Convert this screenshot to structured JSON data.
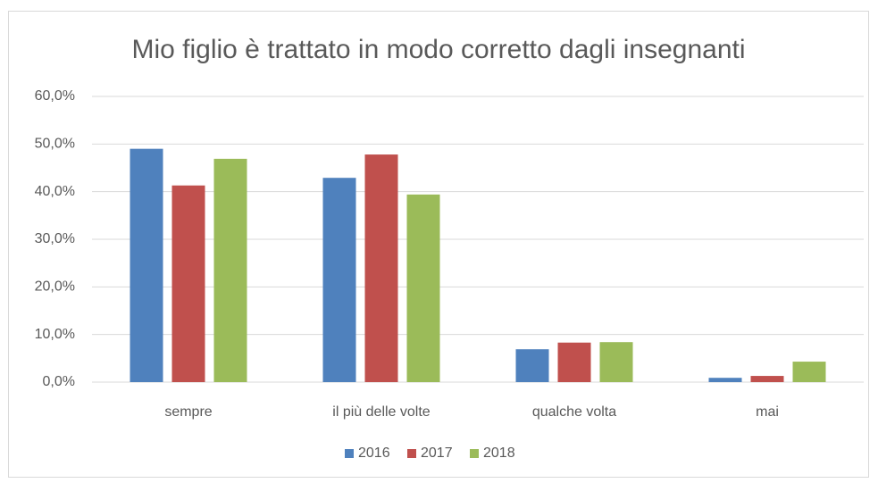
{
  "chart_data": {
    "type": "bar",
    "title": "Mio figlio è trattato in modo corretto dagli insegnanti",
    "categories": [
      "sempre",
      "il più delle volte",
      "qualche volta",
      "mai"
    ],
    "series": [
      {
        "name": "2016",
        "color": "#4f81bd",
        "values": [
          49.0,
          42.9,
          6.9,
          0.9
        ]
      },
      {
        "name": "2017",
        "color": "#c0504d",
        "values": [
          41.3,
          47.8,
          8.3,
          1.3
        ]
      },
      {
        "name": "2018",
        "color": "#9bbb59",
        "values": [
          46.9,
          39.4,
          8.4,
          4.3
        ]
      }
    ],
    "ylim": [
      0,
      60
    ],
    "yticks": [
      {
        "value": 0,
        "label": "0,0%"
      },
      {
        "value": 10,
        "label": "10,0%"
      },
      {
        "value": 20,
        "label": "20,0%"
      },
      {
        "value": 30,
        "label": "30,0%"
      },
      {
        "value": 40,
        "label": "40,0%"
      },
      {
        "value": 50,
        "label": "50,0%"
      },
      {
        "value": 60,
        "label": "60,0%"
      }
    ],
    "grid": true,
    "legend": "bottom"
  }
}
